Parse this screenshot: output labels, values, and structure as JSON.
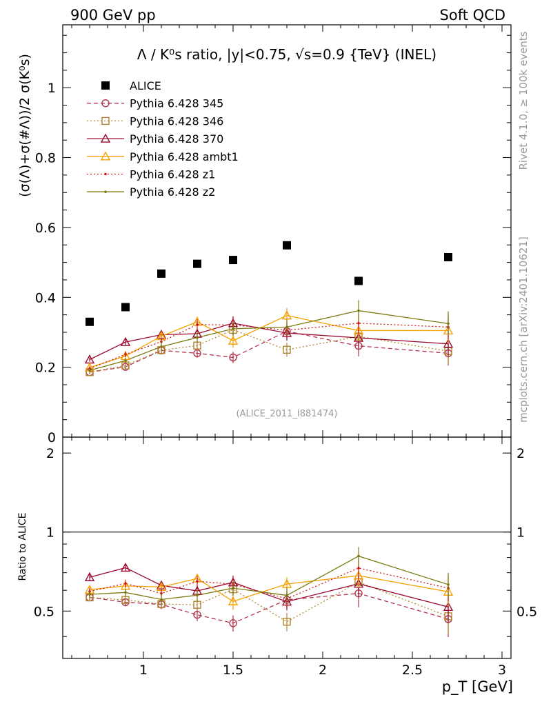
{
  "header": {
    "left": "900 GeV pp",
    "right": "Soft QCD"
  },
  "side_labels": {
    "rivet": "Rivet 4.1.0, ≥ 100k events",
    "mcplots": "mcplots.cern.ch [arXiv:2401.10621]"
  },
  "chart_data": {
    "type": "scatter",
    "title": "Λ / K⁰s ratio, |y|<0.75, √s=0.9 {TeV} (INEL)",
    "analysis_id": "(ALICE_2011_I881474)",
    "ylabel": "(σ(Λ)+σ(#Λ))/2 σ(K⁰s)",
    "xlabel": "p_T [GeV]",
    "xlim": [
      0.55,
      3.05
    ],
    "ylim": [
      0,
      1.18
    ],
    "x_ticks": [
      "1",
      "1.5",
      "2",
      "2.5",
      "3"
    ],
    "y_ticks": [
      "0",
      "0.2",
      "0.4",
      "0.6",
      "0.8",
      "1"
    ],
    "ratio_ylabel": "Ratio to ALICE",
    "ratio_ylim": [
      0.33,
      2.3
    ],
    "ratio_ticks": [
      "0.5",
      "1",
      "2"
    ],
    "x": [
      0.7,
      0.9,
      1.1,
      1.3,
      1.5,
      1.8,
      2.2,
      2.7
    ],
    "series": [
      {
        "name": "ALICE",
        "color": "#000000",
        "marker": "square",
        "line": "none",
        "values": [
          0.33,
          0.372,
          0.468,
          0.496,
          0.507,
          0.549,
          0.447,
          0.515
        ],
        "errors": [
          0,
          0,
          0,
          0,
          0,
          0,
          0,
          0
        ]
      },
      {
        "name": "Pythia 6.428 345",
        "color": "#b2334c",
        "marker": "circle",
        "line": "dashed",
        "values": [
          0.186,
          0.201,
          0.248,
          0.24,
          0.228,
          0.303,
          0.261,
          0.24
        ],
        "errors": [
          0.006,
          0.007,
          0.01,
          0.013,
          0.016,
          0.022,
          0.03,
          0.035
        ]
      },
      {
        "name": "Pythia 6.428 346",
        "color": "#b08530",
        "marker": "square-open",
        "line": "dotted",
        "values": [
          0.186,
          0.205,
          0.249,
          0.262,
          0.307,
          0.25,
          0.288,
          0.246
        ],
        "errors": [
          0.006,
          0.007,
          0.01,
          0.013,
          0.016,
          0.02,
          0.03,
          0.035
        ]
      },
      {
        "name": "Pythia 6.428 370",
        "color": "#9a0a2e",
        "marker": "triangle",
        "line": "solid",
        "values": [
          0.222,
          0.272,
          0.293,
          0.296,
          0.326,
          0.298,
          0.284,
          0.267
        ],
        "errors": [
          0.006,
          0.008,
          0.012,
          0.015,
          0.02,
          0.022,
          0.03,
          0.035
        ]
      },
      {
        "name": "Pythia 6.428 ambt1",
        "color": "#f5a000",
        "marker": "triangle",
        "line": "solid",
        "values": [
          0.199,
          0.232,
          0.289,
          0.33,
          0.276,
          0.348,
          0.305,
          0.305
        ],
        "errors": [
          0.006,
          0.008,
          0.012,
          0.015,
          0.02,
          0.022,
          0.03,
          0.035
        ]
      },
      {
        "name": "Pythia 6.428 z1",
        "color": "#cc1a1a",
        "marker": "dot",
        "line": "dotted",
        "values": [
          0.196,
          0.237,
          0.273,
          0.322,
          0.321,
          0.306,
          0.326,
          0.315
        ],
        "errors": [
          0.006,
          0.008,
          0.012,
          0.015,
          0.02,
          0.022,
          0.03,
          0.035
        ]
      },
      {
        "name": "Pythia 6.428 z2",
        "color": "#7a7a10",
        "marker": "dot",
        "line": "solid",
        "values": [
          0.191,
          0.219,
          0.259,
          0.285,
          0.31,
          0.315,
          0.362,
          0.325
        ],
        "errors": [
          0.006,
          0.008,
          0.012,
          0.015,
          0.02,
          0.022,
          0.03,
          0.035
        ]
      }
    ]
  }
}
